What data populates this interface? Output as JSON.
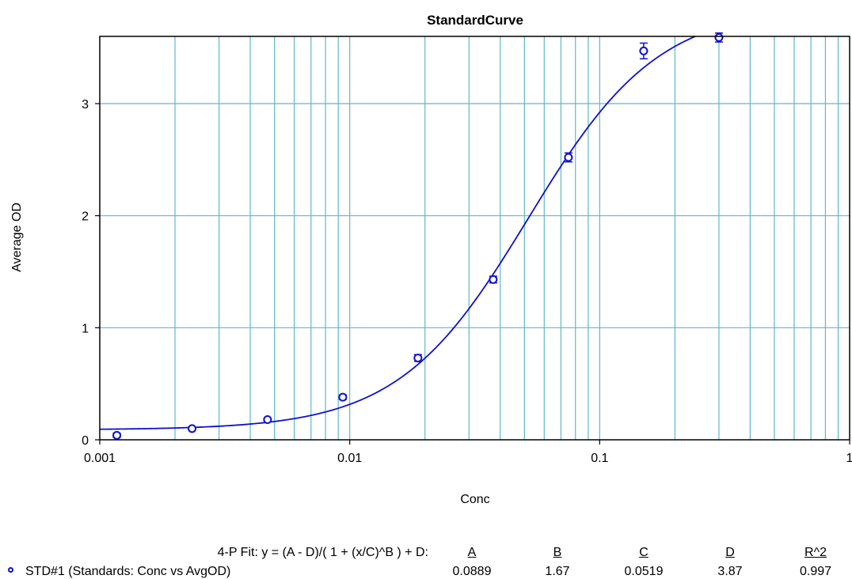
{
  "chart_data": {
    "type": "scatter",
    "title": "StandardCurve",
    "xlabel": "Conc",
    "ylabel": "Average OD",
    "xscale": "log",
    "xlim": [
      0.001,
      1
    ],
    "ylim": [
      0,
      3.6
    ],
    "grid": true,
    "x_tick_labels": [
      "0.001",
      "0.01",
      "0.1",
      "1"
    ],
    "y_tick_labels": [
      "0",
      "1",
      "2",
      "3"
    ],
    "series": [
      {
        "name": "STD#1 (Standards: Conc vs AvgOD)",
        "color": "#1010cc",
        "points": [
          {
            "x": 0.00117,
            "y": 0.04,
            "err": 0.02
          },
          {
            "x": 0.00234,
            "y": 0.1,
            "err": 0.01
          },
          {
            "x": 0.00469,
            "y": 0.18,
            "err": 0.01
          },
          {
            "x": 0.00938,
            "y": 0.38,
            "err": 0.02
          },
          {
            "x": 0.01875,
            "y": 0.73,
            "err": 0.03
          },
          {
            "x": 0.0375,
            "y": 1.43,
            "err": 0.03
          },
          {
            "x": 0.075,
            "y": 2.52,
            "err": 0.04
          },
          {
            "x": 0.15,
            "y": 3.47,
            "err": 0.07
          },
          {
            "x": 0.3,
            "y": 3.59,
            "err": 0.04
          }
        ]
      }
    ],
    "fit": {
      "model": "4-P",
      "equation_label": "4-P Fit:  y = (A - D)/( 1 + (x/C)^B ) + D:",
      "headers": [
        "A",
        "B",
        "C",
        "D",
        "R^2"
      ],
      "values": [
        "0.0889",
        "1.67",
        "0.0519",
        "3.87",
        "0.997"
      ],
      "params": {
        "A": 0.0889,
        "B": 1.67,
        "C": 0.0519,
        "D": 3.87
      }
    }
  },
  "colors": {
    "grid": "#5fb8c8",
    "series": "#1010cc",
    "axis": "#000000"
  }
}
